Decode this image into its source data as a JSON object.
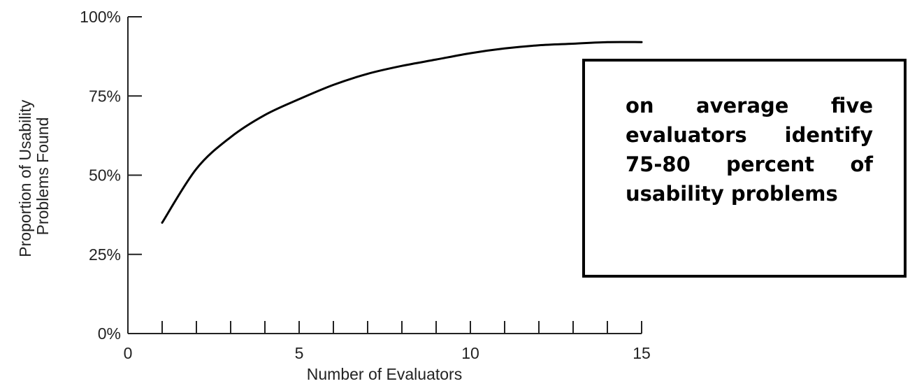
{
  "chart_data": {
    "type": "line",
    "title": "",
    "xlabel": "Number of Evaluators",
    "ylabel": "Proportion of Usability Problems Found",
    "ylabel_lines": [
      "Proportion of Usability",
      "Problems Found"
    ],
    "xlim": [
      0,
      15
    ],
    "ylim": [
      0,
      100
    ],
    "x_tick_labels": [
      "0",
      "5",
      "10",
      "15"
    ],
    "x_minor_ticks": [
      1,
      2,
      3,
      4,
      5,
      6,
      7,
      8,
      9,
      10,
      11,
      12,
      13,
      14,
      15
    ],
    "y_tick_labels": [
      "0%",
      "25%",
      "50%",
      "75%",
      "100%"
    ],
    "y_tick_values": [
      0,
      25,
      50,
      75,
      100
    ],
    "grid": false,
    "series": [
      {
        "x": [
          1,
          2,
          3,
          4,
          5,
          6,
          7,
          8,
          9,
          10,
          11,
          12,
          13,
          14,
          15
        ],
        "y": [
          35,
          52,
          62,
          69,
          74,
          78.5,
          82,
          84.5,
          86.5,
          88.5,
          90,
          91,
          91.5,
          92,
          92
        ],
        "color": "#000000"
      }
    ],
    "annotation": "on average five evaluators identify 75-80 percent of usability problems"
  }
}
